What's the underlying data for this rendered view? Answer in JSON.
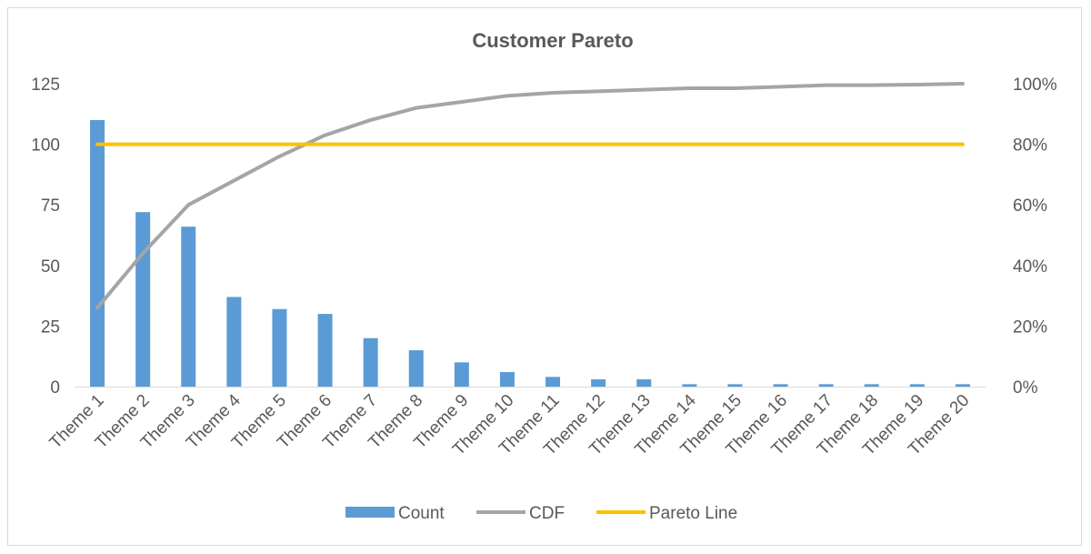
{
  "chart_data": {
    "type": "bar",
    "title": "Customer Pareto",
    "categories": [
      "Theme 1",
      "Theme 2",
      "Theme 3",
      "Theme 4",
      "Theme 5",
      "Theme 6",
      "Theme 7",
      "Theme 8",
      "Theme 9",
      "Theme 10",
      "Theme 11",
      "Theme 12",
      "Theme 13",
      "Theme 14",
      "Theme 15",
      "Theme 16",
      "Theme 17",
      "Theme 18",
      "Theme 19",
      "Theme 20"
    ],
    "series": [
      {
        "name": "Count",
        "type": "bar",
        "axis": "left",
        "color": "#5b9bd5",
        "values": [
          110,
          72,
          66,
          37,
          32,
          30,
          20,
          15,
          10,
          6,
          4,
          3,
          3,
          1,
          1,
          1,
          1,
          1,
          1,
          1
        ]
      },
      {
        "name": "CDF",
        "type": "line",
        "axis": "right",
        "color": "#a5a5a5",
        "values": [
          0.26,
          0.44,
          0.6,
          0.68,
          0.76,
          0.83,
          0.88,
          0.92,
          0.94,
          0.96,
          0.97,
          0.975,
          0.98,
          0.985,
          0.985,
          0.99,
          0.995,
          0.995,
          0.997,
          1.0
        ]
      },
      {
        "name": "Pareto Line",
        "type": "line",
        "axis": "right",
        "color": "#ffc000",
        "values": [
          0.8,
          0.8,
          0.8,
          0.8,
          0.8,
          0.8,
          0.8,
          0.8,
          0.8,
          0.8,
          0.8,
          0.8,
          0.8,
          0.8,
          0.8,
          0.8,
          0.8,
          0.8,
          0.8,
          0.8
        ]
      }
    ],
    "y_left": {
      "min": 0,
      "max": 125,
      "ticks": [
        "0",
        "25",
        "50",
        "75",
        "100",
        "125"
      ],
      "tick_values": [
        0,
        25,
        50,
        75,
        100,
        125
      ]
    },
    "y_right": {
      "min": 0,
      "max": 1,
      "ticks": [
        "0%",
        "20%",
        "40%",
        "60%",
        "80%",
        "100%"
      ],
      "tick_values": [
        0,
        0.2,
        0.4,
        0.6,
        0.8,
        1.0
      ]
    },
    "grid": false,
    "legend": "bottom"
  }
}
